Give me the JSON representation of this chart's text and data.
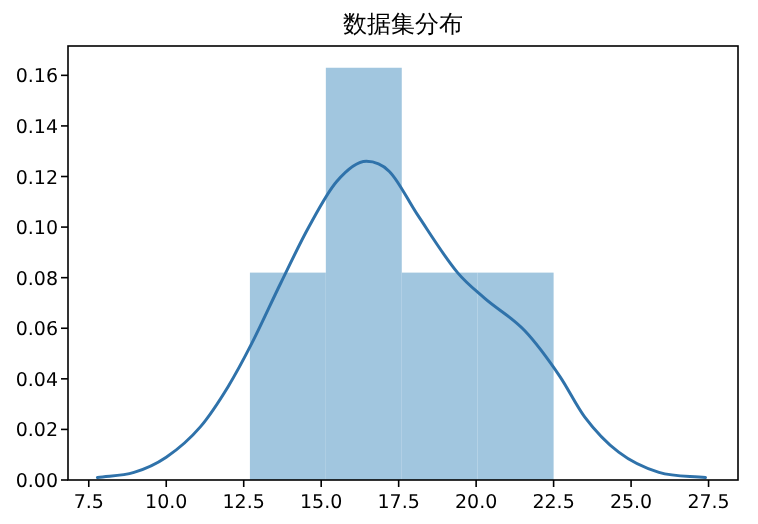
{
  "chart_data": {
    "type": "histogram",
    "title": "数据集分布",
    "series": [
      {
        "color": "#a1c6df",
        "bins": [
          12.7,
          15.15,
          17.6,
          20.05,
          22.5
        ],
        "values": [
          0.082,
          0.163,
          0.082,
          0.082
        ]
      },
      {
        "type": "line",
        "color": "#2f72aa",
        "x": [
          7.78,
          8.96,
          10.0,
          11.1,
          12.0,
          12.76,
          13.7,
          14.6,
          15.5,
          16.46,
          17.2,
          18.1,
          19.4,
          20.26,
          21.57,
          22.7,
          23.5,
          24.6,
          25.9,
          27.4
        ],
        "values": [
          0.001,
          0.003,
          0.009,
          0.021,
          0.037,
          0.054,
          0.078,
          0.1,
          0.118,
          0.126,
          0.122,
          0.105,
          0.082,
          0.072,
          0.059,
          0.041,
          0.025,
          0.011,
          0.003,
          0.001
        ]
      }
    ],
    "xlim": [
      6.83,
      28.45
    ],
    "ylim": [
      0,
      0.1716
    ],
    "xticks": [
      7.5,
      {
        "value": 10,
        "label": "10.0"
      },
      12.5,
      {
        "value": 15,
        "label": "15.0"
      },
      17.5,
      {
        "value": 20,
        "label": "20.0"
      },
      22.5,
      {
        "value": 25,
        "label": "25.0"
      },
      27.5
    ],
    "yticks": [
      {
        "value": 0,
        "label": "0.00"
      },
      {
        "value": 0.02,
        "label": "0.02"
      },
      {
        "value": 0.04,
        "label": "0.04"
      },
      {
        "value": 0.06,
        "label": "0.06"
      },
      {
        "value": 0.08,
        "label": "0.08"
      },
      {
        "value": 0.1,
        "label": "0.10"
      },
      {
        "value": 0.12,
        "label": "0.12"
      },
      {
        "value": 0.14,
        "label": "0.14"
      },
      {
        "value": 0.16,
        "label": "0.16"
      }
    ],
    "grid": false
  }
}
